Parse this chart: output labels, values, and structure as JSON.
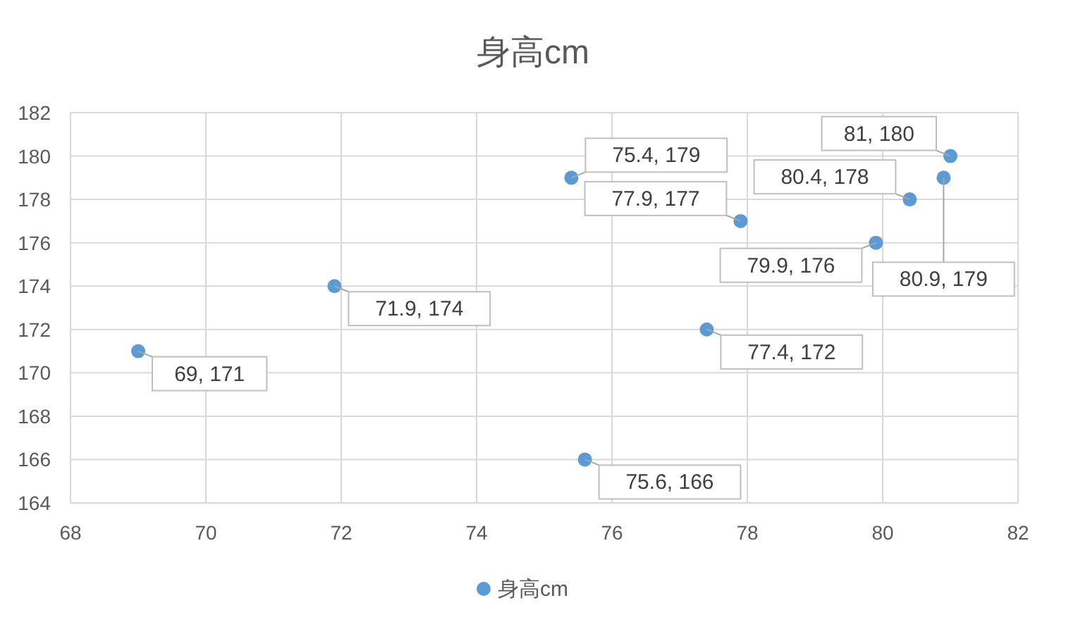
{
  "chart_data": {
    "type": "scatter",
    "title": "身高cm",
    "series": [
      {
        "name": "身高cm",
        "color": "#5b9bd5",
        "x": [
          69,
          71.9,
          75.4,
          75.6,
          77.4,
          77.9,
          79.9,
          80.4,
          80.9,
          81
        ],
        "values": [
          171,
          174,
          179,
          166,
          172,
          177,
          176,
          178,
          179,
          180
        ],
        "value_labels": [
          "69, 171",
          "71.9, 174",
          "75.4, 179",
          "75.6, 166",
          "77.4, 172",
          "77.9, 177",
          "79.9, 176",
          "80.4, 178",
          "80.9, 179",
          "81, 180"
        ]
      }
    ],
    "xlim": [
      68,
      82
    ],
    "xticks": [
      68,
      70,
      72,
      74,
      76,
      78,
      80,
      82
    ],
    "ylim": [
      164,
      182
    ],
    "yticks": [
      164,
      166,
      168,
      170,
      172,
      174,
      176,
      178,
      180,
      182
    ],
    "grid": true,
    "legend": "bottom",
    "marker": "circle"
  }
}
